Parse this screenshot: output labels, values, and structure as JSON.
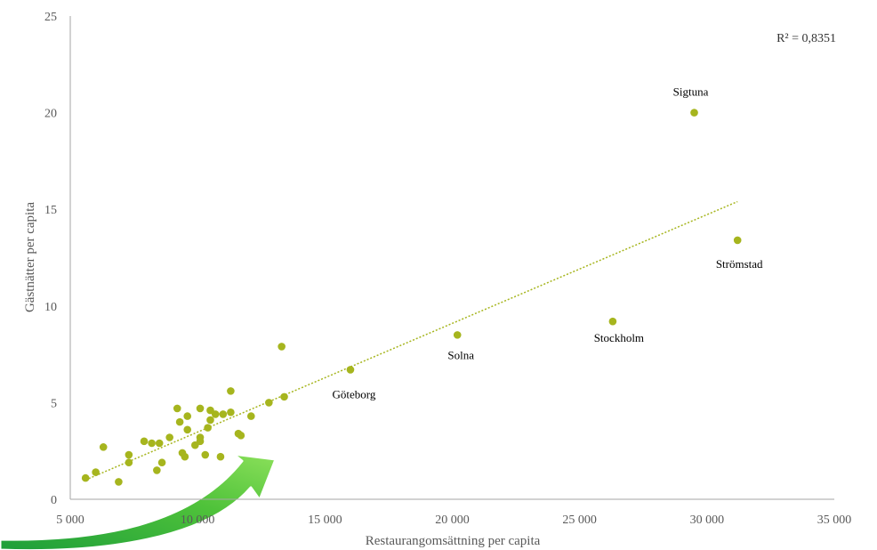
{
  "chart_data": {
    "type": "scatter",
    "title": "",
    "xlabel": "Restaurangomsättning  per capita",
    "ylabel": "Gästnätter per capita",
    "xlim": [
      5000,
      35000
    ],
    "ylim": [
      0,
      25
    ],
    "x_ticks": [
      {
        "value": 5000,
        "label": "5 000"
      },
      {
        "value": 10000,
        "label": "10 000"
      },
      {
        "value": 15000,
        "label": "15 000"
      },
      {
        "value": 20000,
        "label": "20 000"
      },
      {
        "value": 25000,
        "label": "25 000"
      },
      {
        "value": 30000,
        "label": "30 000"
      },
      {
        "value": 35000,
        "label": "35 000"
      }
    ],
    "y_ticks": [
      {
        "value": 0,
        "label": "0"
      },
      {
        "value": 5,
        "label": "5"
      },
      {
        "value": 10,
        "label": "10"
      },
      {
        "value": 15,
        "label": "15"
      },
      {
        "value": 20,
        "label": "20"
      },
      {
        "value": 25,
        "label": "25"
      }
    ],
    "grid": false,
    "marker_color": "#a6b51e",
    "trendline": {
      "type": "linear",
      "color": "#a6b51e",
      "style": "dotted",
      "x_range": [
        5600,
        31200
      ],
      "y_range": [
        1.0,
        15.4
      ]
    },
    "r_squared_label": "R² = 0,8351",
    "labeled_points": [
      {
        "label": "Sigtuna",
        "x": 29500,
        "y": 20.0
      },
      {
        "label": "Strömstad",
        "x": 31200,
        "y": 13.4
      },
      {
        "label": "Stockholm",
        "x": 26300,
        "y": 9.2
      },
      {
        "label": "Solna",
        "x": 20200,
        "y": 8.5
      },
      {
        "label": "Göteborg",
        "x": 16000,
        "y": 6.7
      }
    ],
    "points": [
      {
        "x": 5600,
        "y": 1.1
      },
      {
        "x": 6000,
        "y": 1.4
      },
      {
        "x": 6300,
        "y": 2.7
      },
      {
        "x": 6900,
        "y": 0.9
      },
      {
        "x": 7300,
        "y": 2.3
      },
      {
        "x": 7300,
        "y": 1.9
      },
      {
        "x": 7900,
        "y": 3.0
      },
      {
        "x": 8200,
        "y": 2.9
      },
      {
        "x": 8400,
        "y": 1.5
      },
      {
        "x": 8500,
        "y": 2.9
      },
      {
        "x": 8600,
        "y": 1.9
      },
      {
        "x": 8900,
        "y": 3.2
      },
      {
        "x": 9200,
        "y": 4.7
      },
      {
        "x": 9300,
        "y": 4.0
      },
      {
        "x": 9400,
        "y": 2.4
      },
      {
        "x": 9500,
        "y": 2.2
      },
      {
        "x": 9600,
        "y": 4.3
      },
      {
        "x": 9600,
        "y": 3.6
      },
      {
        "x": 9900,
        "y": 2.8
      },
      {
        "x": 10100,
        "y": 4.7
      },
      {
        "x": 10100,
        "y": 3.2
      },
      {
        "x": 10100,
        "y": 3.0
      },
      {
        "x": 10300,
        "y": 2.3
      },
      {
        "x": 10400,
        "y": 3.7
      },
      {
        "x": 10500,
        "y": 4.6
      },
      {
        "x": 10500,
        "y": 4.1
      },
      {
        "x": 10700,
        "y": 4.4
      },
      {
        "x": 10900,
        "y": 2.2
      },
      {
        "x": 11000,
        "y": 4.4
      },
      {
        "x": 11300,
        "y": 5.6
      },
      {
        "x": 11300,
        "y": 4.5
      },
      {
        "x": 11600,
        "y": 3.4
      },
      {
        "x": 11700,
        "y": 3.3
      },
      {
        "x": 12100,
        "y": 4.3
      },
      {
        "x": 12800,
        "y": 5.0
      },
      {
        "x": 13300,
        "y": 7.9
      },
      {
        "x": 13400,
        "y": 5.3
      }
    ]
  }
}
